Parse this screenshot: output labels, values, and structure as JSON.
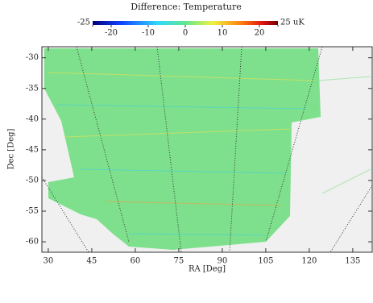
{
  "chart_data": {
    "type": "heatmap",
    "title": "Difference: Temperature",
    "xlabel": "RA [Deg]",
    "ylabel": "Dec [Deg]",
    "xlim": [
      27.8,
      141.7
    ],
    "xticks": [
      30,
      45,
      60,
      75,
      90,
      105,
      120,
      135
    ],
    "ylim": [
      -61.7,
      -28.2
    ],
    "yticks": [
      -30,
      -35,
      -40,
      -45,
      -50,
      -55,
      -60
    ],
    "clim": [
      -25,
      25
    ],
    "cticks": [
      {
        "value": -25,
        "label": "-25"
      },
      -20,
      -10,
      0,
      10,
      20,
      {
        "value": 25,
        "label": "25 uK"
      }
    ]
  }
}
